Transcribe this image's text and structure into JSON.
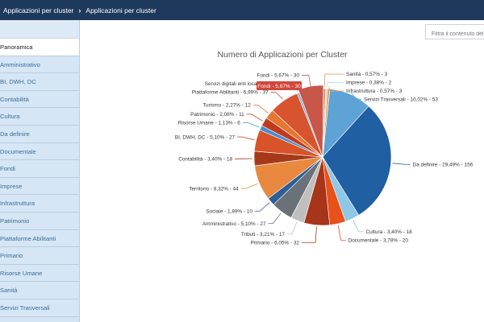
{
  "breadcrumb": {
    "item1": "Applicazioni per cluster",
    "item2": "Applicazioni per cluster"
  },
  "filter": {
    "placeholder": "Filtra il contenuto della"
  },
  "sidebar": {
    "items": [
      {
        "label": "Panoramica",
        "active": true
      },
      {
        "label": "Amministrativo"
      },
      {
        "label": "BI, DWH, DC"
      },
      {
        "label": "Contabilità"
      },
      {
        "label": "Cultura"
      },
      {
        "label": "Da definire"
      },
      {
        "label": "Documentale"
      },
      {
        "label": "Fondi"
      },
      {
        "label": "Imprese"
      },
      {
        "label": "Infrastruttura"
      },
      {
        "label": "Patrimonio"
      },
      {
        "label": "Piattaforme Abilitanti"
      },
      {
        "label": "Primario"
      },
      {
        "label": "Risorse Umane"
      },
      {
        "label": "Sanità"
      },
      {
        "label": "Servizi Trasversali"
      }
    ]
  },
  "chart_data": {
    "type": "pie",
    "title": "Numero di Applicazioni per Cluster",
    "tooltip": "Fondi - 5,67% - 30",
    "slices": [
      {
        "label": "Servizi Trasversali - 10,02% - 53",
        "value": 53,
        "color": "#5da3d5"
      },
      {
        "label": "Da definire - 29,49% - 156",
        "value": 156,
        "color": "#1f5fa2"
      },
      {
        "label": "Cultura - 3,40% - 18",
        "value": 18,
        "color": "#8ec8e6"
      },
      {
        "label": "Documentale - 3,78% - 20",
        "value": 20,
        "color": "#e8511c"
      },
      {
        "label": "Primario - 6,05% - 32",
        "value": 32,
        "color": "#a63519"
      },
      {
        "label": "Tributi - 3,21% - 17",
        "value": 17,
        "color": "#bfbfbf"
      },
      {
        "label": "Amministrativo - 5,10% - 27",
        "value": 27,
        "color": "#6b7178"
      },
      {
        "label": "Sociale - 1,89% - 10",
        "value": 10,
        "color": "#2c5f95"
      },
      {
        "label": "Territorio - 8,32% - 44",
        "value": 44,
        "color": "#e8893f"
      },
      {
        "label": "Contabilità - 3,40% - 18",
        "value": 18,
        "color": "#a5391a"
      },
      {
        "label": "BI, DWH, DC - 5,10% - 27",
        "value": 27,
        "color": "#d85329"
      },
      {
        "label": "Risorse Umane - 1,13% - 6",
        "value": 6,
        "color": "#4b8fcf"
      },
      {
        "label": "Patrimonio - 2,08% - 11",
        "value": 11,
        "color": "#c23a1e"
      },
      {
        "label": "Turismo - 2,27% - 12",
        "value": 12,
        "color": "#e57732"
      },
      {
        "label": "Piattaforme Abilitanti - 6,99% - 37",
        "value": 37,
        "color": "#d8542e"
      },
      {
        "label": "Servizi digitali enti locali - 0,57% - 3",
        "value": 3,
        "color": "#8ab4d8"
      },
      {
        "label": "Fondi - 5,67% - 30",
        "value": 30,
        "color": "#c8574a"
      },
      {
        "label": "Sanità - 0,57% - 3",
        "value": 3,
        "color": "#e09a6a"
      },
      {
        "label": "Imprese - 0,38% - 2",
        "value": 2,
        "color": "#bcd7ea"
      },
      {
        "label": "Infrastruttura - 0,57% - 3",
        "value": 3,
        "color": "#f0a04a"
      }
    ]
  }
}
